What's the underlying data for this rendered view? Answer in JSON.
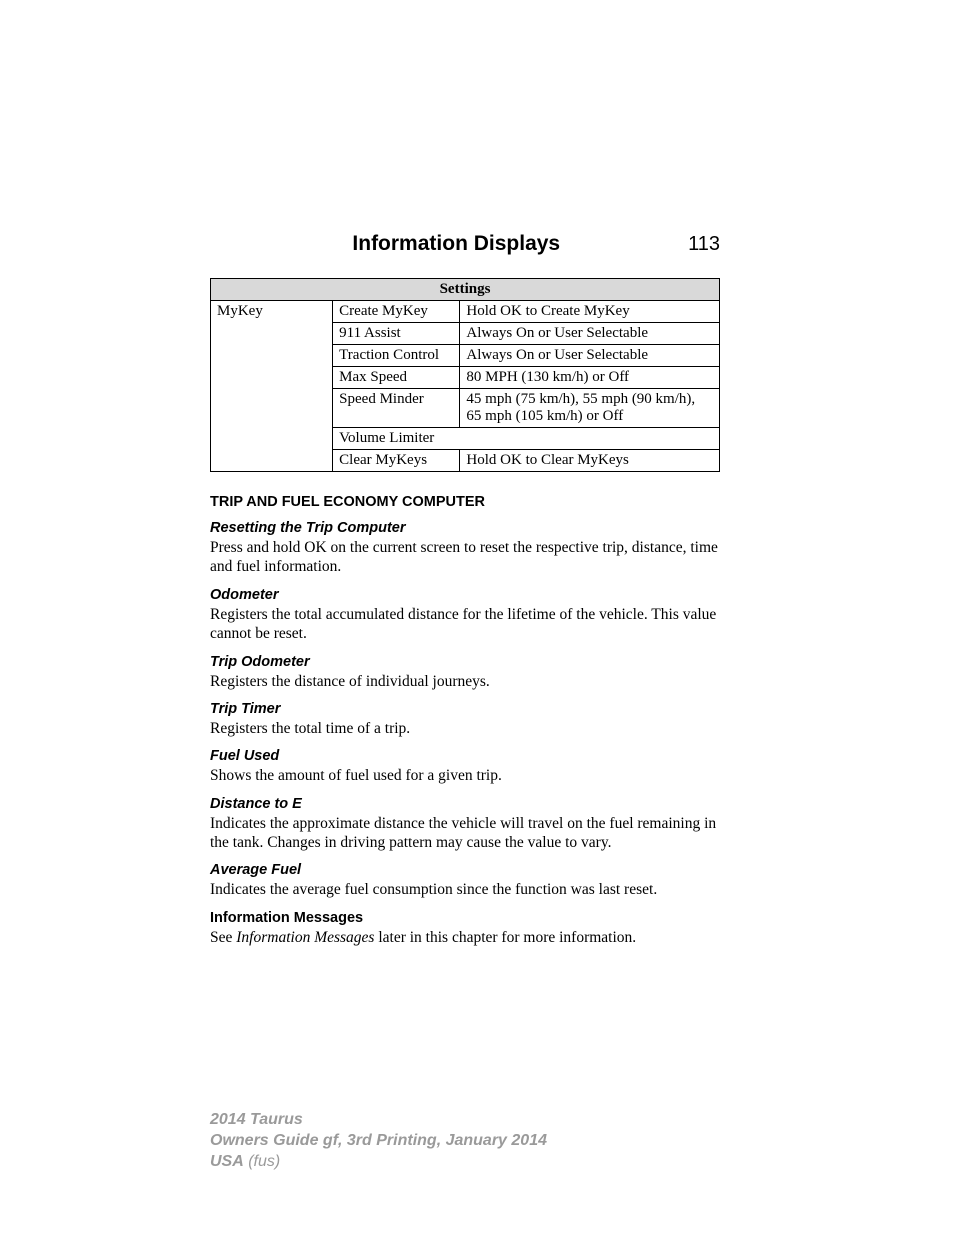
{
  "header": {
    "title": "Information Displays",
    "page_number": "113"
  },
  "settings_table": {
    "header": "Settings",
    "col1_label": "MyKey",
    "rows": [
      {
        "item": "Create MyKey",
        "value": "Hold OK to Create MyKey"
      },
      {
        "item": "911 Assist",
        "value": "Always On or User Selectable"
      },
      {
        "item": "Traction Control",
        "value": "Always On or User Selectable"
      },
      {
        "item": "Max Speed",
        "value": "80 MPH (130 km/h) or Off"
      },
      {
        "item": "Speed Minder",
        "value": "45 mph (75 km/h), 55 mph (90 km/h), 65 mph (105 km/h) or Off"
      },
      {
        "item": "Volume Limiter",
        "value": ""
      },
      {
        "item": "Clear MyKeys",
        "value": "Hold OK to Clear MyKeys"
      }
    ]
  },
  "sections": {
    "main_title": "TRIP AND FUEL ECONOMY COMPUTER",
    "resetting": {
      "title": "Resetting the Trip Computer",
      "body": "Press and hold OK on the current screen to reset the respective trip, distance, time and fuel information."
    },
    "odometer": {
      "title": "Odometer",
      "body": "Registers the total accumulated distance for the lifetime of the vehicle. This value cannot be reset."
    },
    "trip_odometer": {
      "title": "Trip Odometer",
      "body": "Registers the distance of individual journeys."
    },
    "trip_timer": {
      "title": "Trip Timer",
      "body": "Registers the total time of a trip."
    },
    "fuel_used": {
      "title": "Fuel Used",
      "body": "Shows the amount of fuel used for a given trip."
    },
    "distance_to_e": {
      "title": "Distance to E",
      "body": "Indicates the approximate distance the vehicle will travel on the fuel remaining in the tank. Changes in driving pattern may cause the value to vary."
    },
    "average_fuel": {
      "title": "Average Fuel",
      "body": "Indicates the average fuel consumption since the function was last reset."
    },
    "info_messages": {
      "title": "Information Messages",
      "body_pre": "See ",
      "body_ital": "Information Messages",
      "body_post": " later in this chapter for more information."
    }
  },
  "footer": {
    "line1": "2014 Taurus",
    "line2": "Owners Guide gf, 3rd Printing, January 2014",
    "line3a": "USA",
    "line3b": " (fus)"
  },
  "colors": {
    "text": "#000000",
    "table_header_bg": "#d9d9d9",
    "footer_text": "#9a9a9a",
    "background": "#ffffff"
  }
}
